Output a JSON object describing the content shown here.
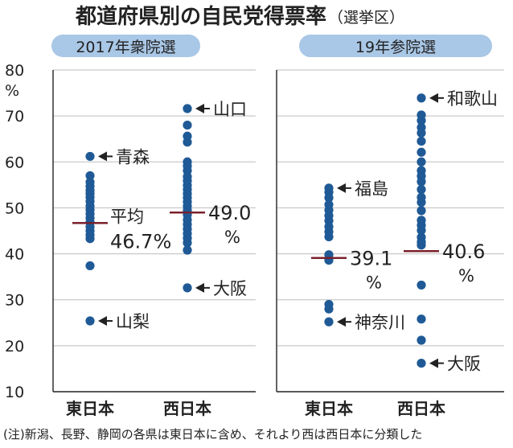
{
  "title": "都道府県別の自民党得票率",
  "title_suffix": "（選挙区）",
  "y_unit": "%",
  "note": "(注)新潟、長野、静岡の各県は東日本に含め、それより西は西日本に分類した",
  "colors": {
    "dot": "#1f5a96",
    "avg_line": "#7a1f2a",
    "pill": "#a9c7e6",
    "grid": "#bdbdbd",
    "axis": "#222222"
  },
  "chart_data": [
    {
      "type": "scatter",
      "panel_title": "2017年衆院選",
      "ylim": [
        10,
        80
      ],
      "yticks": [
        10,
        20,
        30,
        40,
        50,
        60,
        70,
        80
      ],
      "categories": [
        "東日本",
        "西日本"
      ],
      "series": [
        {
          "category": "東日本",
          "values": [
            61.2,
            57.0,
            55.6,
            54.7,
            53.8,
            53.1,
            52.3,
            51.4,
            50.4,
            49.6,
            48.7,
            47.8,
            46.9,
            45.9,
            45.0,
            44.1,
            43.3,
            37.4,
            25.4
          ],
          "average": 46.7,
          "average_label": [
            "平均",
            "46.7%"
          ],
          "annotations": [
            {
              "value": 61.2,
              "label": "青森"
            },
            {
              "value": 25.4,
              "label": "山梨"
            }
          ]
        },
        {
          "category": "西日本",
          "values": [
            71.6,
            68.0,
            65.6,
            64.3,
            60.0,
            59.1,
            58.1,
            56.8,
            55.9,
            54.9,
            54.0,
            53.1,
            52.2,
            51.3,
            50.4,
            49.5,
            48.5,
            47.4,
            46.4,
            45.4,
            44.4,
            43.4,
            42.4,
            40.8,
            32.6
          ],
          "average": 49.0,
          "average_label": [
            "49.0",
            "%"
          ],
          "annotations": [
            {
              "value": 71.6,
              "label": "山口"
            },
            {
              "value": 32.6,
              "label": "大阪"
            }
          ]
        }
      ]
    },
    {
      "type": "scatter",
      "panel_title": "19年参院選",
      "ylim": [
        10,
        80
      ],
      "yticks": [
        10,
        20,
        30,
        40,
        50,
        60,
        70,
        80
      ],
      "categories": [
        "東日本",
        "西日本"
      ],
      "series": [
        {
          "category": "東日本",
          "values": [
            54.3,
            53.4,
            52.2,
            50.7,
            49.5,
            48.3,
            47.2,
            45.9,
            44.8,
            43.7,
            39.8,
            38.6,
            29.0,
            28.0,
            25.2
          ],
          "average": 39.1,
          "average_label": [
            "39.1",
            "%"
          ],
          "annotations": [
            {
              "value": 54.3,
              "label": "福島"
            },
            {
              "value": 25.2,
              "label": "神奈川"
            }
          ]
        },
        {
          "category": "西日本",
          "values": [
            73.9,
            70.2,
            69.0,
            67.5,
            66.3,
            64.5,
            62.1,
            60.0,
            58.1,
            56.9,
            55.7,
            54.0,
            52.3,
            51.2,
            49.4,
            47.3,
            46.2,
            45.1,
            43.6,
            42.6,
            41.9,
            33.2,
            25.8,
            21.2,
            16.2
          ],
          "average": 40.6,
          "average_label": [
            "40.6",
            "%"
          ],
          "annotations": [
            {
              "value": 73.9,
              "label": "和歌山"
            },
            {
              "value": 16.2,
              "label": "大阪"
            }
          ]
        }
      ]
    }
  ]
}
